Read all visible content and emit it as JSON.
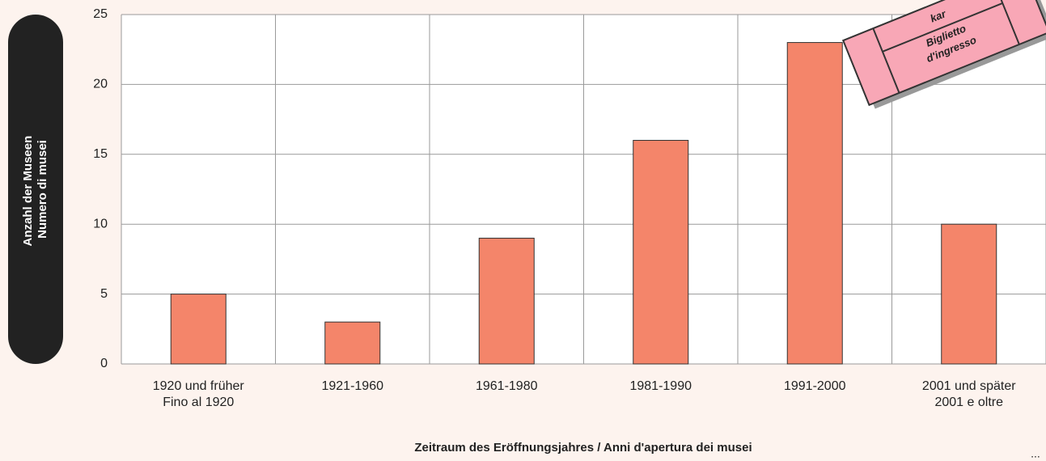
{
  "chart_data": {
    "type": "bar",
    "categories": [
      [
        "1920 und früher",
        "Fino al 1920"
      ],
      [
        "1921-1960"
      ],
      [
        "1961-1980"
      ],
      [
        "1981-1990"
      ],
      [
        "1991-2000"
      ],
      [
        "2001 und später",
        "2001 e oltre"
      ]
    ],
    "values": [
      5,
      3,
      9,
      16,
      23,
      10
    ],
    "color": "#f4856a",
    "ylim": [
      0,
      25
    ],
    "yticks": [
      0,
      5,
      10,
      15,
      20,
      25
    ],
    "grid": true,
    "ylabel": [
      "Anzahl der Museen",
      "Numero di musei"
    ],
    "xlabel": "Zeitraum des Eröffnungsjahres / Anni d'apertura dei musei",
    "ticket": [
      "kar",
      "Biglietto",
      "d'ingresso"
    ],
    "more": "..."
  }
}
